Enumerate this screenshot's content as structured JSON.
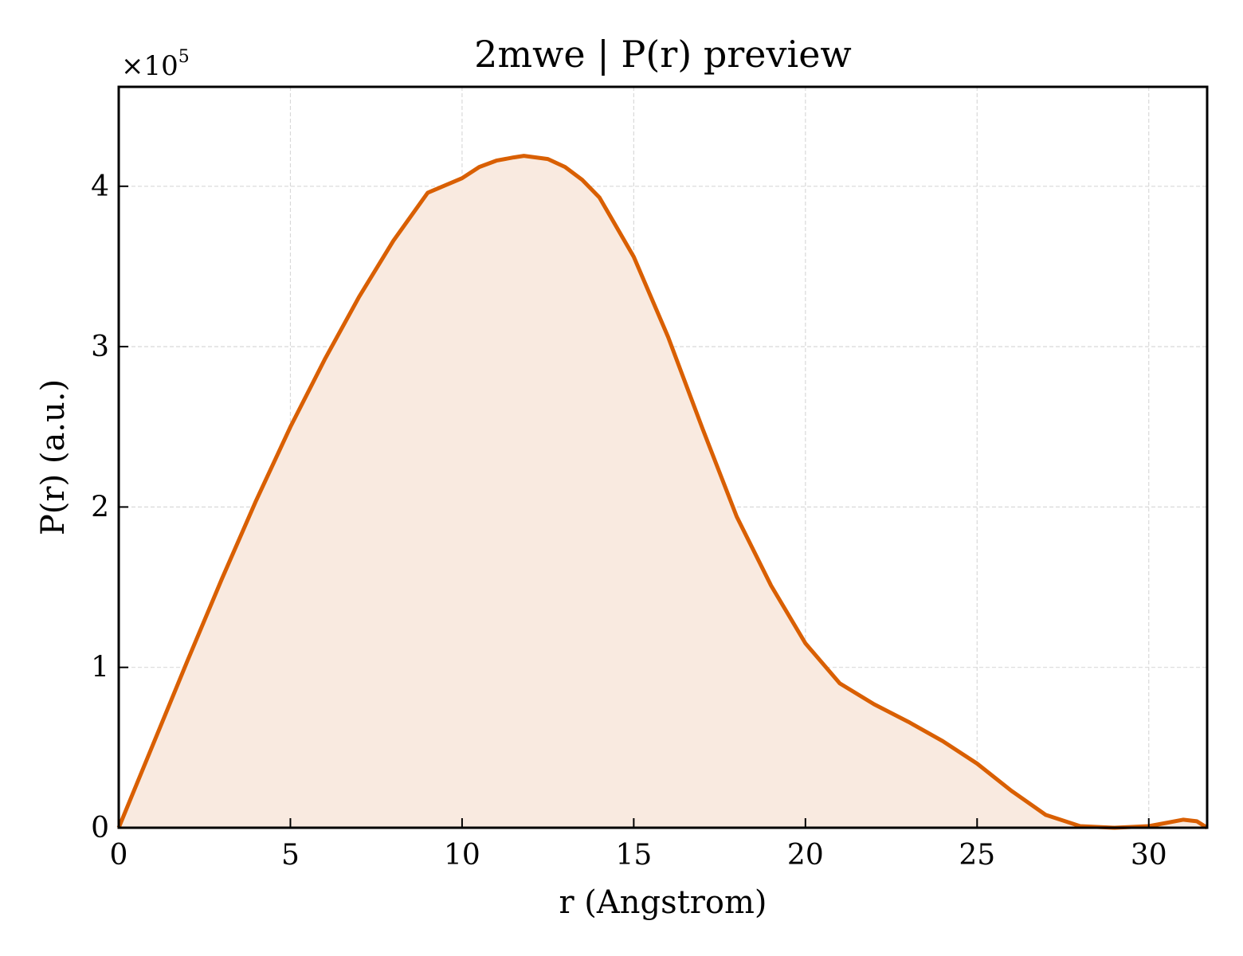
{
  "chart_data": {
    "type": "area",
    "title": "2mwe | P(r) preview",
    "xlabel": "r (Angstrom)",
    "ylabel": "P(r) (a.u.)",
    "y_multiplier_base": "×10",
    "y_multiplier_exp": "5",
    "xlim": [
      0,
      31.7
    ],
    "ylim": [
      0,
      4.62
    ],
    "xticks": [
      0,
      5,
      10,
      15,
      20,
      25,
      30
    ],
    "xtick_labels": [
      "0",
      "5",
      "10",
      "15",
      "20",
      "25",
      "30"
    ],
    "yticks": [
      0,
      1,
      2,
      3,
      4
    ],
    "ytick_labels": [
      "0",
      "1",
      "2",
      "3",
      "4"
    ],
    "grid": true,
    "line_color": "#d95f02",
    "fill_color": "#f9eae0",
    "series": [
      {
        "x": [
          0,
          1,
          2,
          3,
          4,
          5,
          6,
          7,
          8,
          9,
          10,
          10.5,
          11,
          11.5,
          11.8,
          12.5,
          13,
          13.5,
          14,
          15,
          16,
          17,
          18,
          19,
          20,
          21,
          22,
          23,
          24,
          25,
          26,
          27,
          28,
          29,
          30,
          30.5,
          31,
          31.4,
          31.7
        ],
        "y": [
          0,
          0.52,
          1.04,
          1.55,
          2.04,
          2.5,
          2.92,
          3.31,
          3.66,
          3.96,
          4.05,
          4.12,
          4.16,
          4.18,
          4.19,
          4.17,
          4.12,
          4.04,
          3.93,
          3.56,
          3.06,
          2.49,
          1.94,
          1.51,
          1.15,
          0.9,
          0.77,
          0.66,
          0.54,
          0.4,
          0.23,
          0.08,
          0.01,
          0.0,
          0.01,
          0.03,
          0.05,
          0.04,
          0.0
        ]
      }
    ]
  }
}
